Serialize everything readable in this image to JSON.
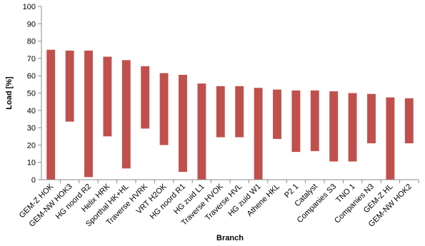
{
  "chart_data": {
    "type": "bar",
    "subtype": "floating-range",
    "xlabel": "Branch",
    "ylabel": "Load [%]",
    "ylim": [
      0,
      100
    ],
    "ytick_step": 10,
    "grid": false,
    "bar_color": "#c0504d",
    "categories": [
      "GEM-Z HOK",
      "GEM-NW HOK3",
      "HG noord R2",
      "Helix HRK",
      "Sporthal HK+HL",
      "Traverse HVRK",
      "VRT H2OK",
      "HG noord R1",
      "HG zuid L1",
      "Traverse HVOK",
      "Traverse HVL",
      "HG zuid W1",
      "Athene HKL",
      "P2 1",
      "Catalyst",
      "Companies S3",
      "TNO 1",
      "Companies N3",
      "GEM-Z HL",
      "GEM-NW HOK2"
    ],
    "series": [
      {
        "low": [
          0,
          33.5,
          1.5,
          25,
          6.5,
          29.5,
          20,
          4.5,
          0,
          24.5,
          24.5,
          0,
          23.5,
          16,
          16.5,
          10.5,
          10.5,
          21,
          0,
          21
        ],
        "high": [
          75,
          74.5,
          74.5,
          71,
          69,
          65.5,
          61.5,
          60.5,
          55.5,
          54,
          54,
          53,
          52,
          51.5,
          51.5,
          51,
          50,
          49.5,
          47.5,
          47
        ]
      }
    ]
  }
}
